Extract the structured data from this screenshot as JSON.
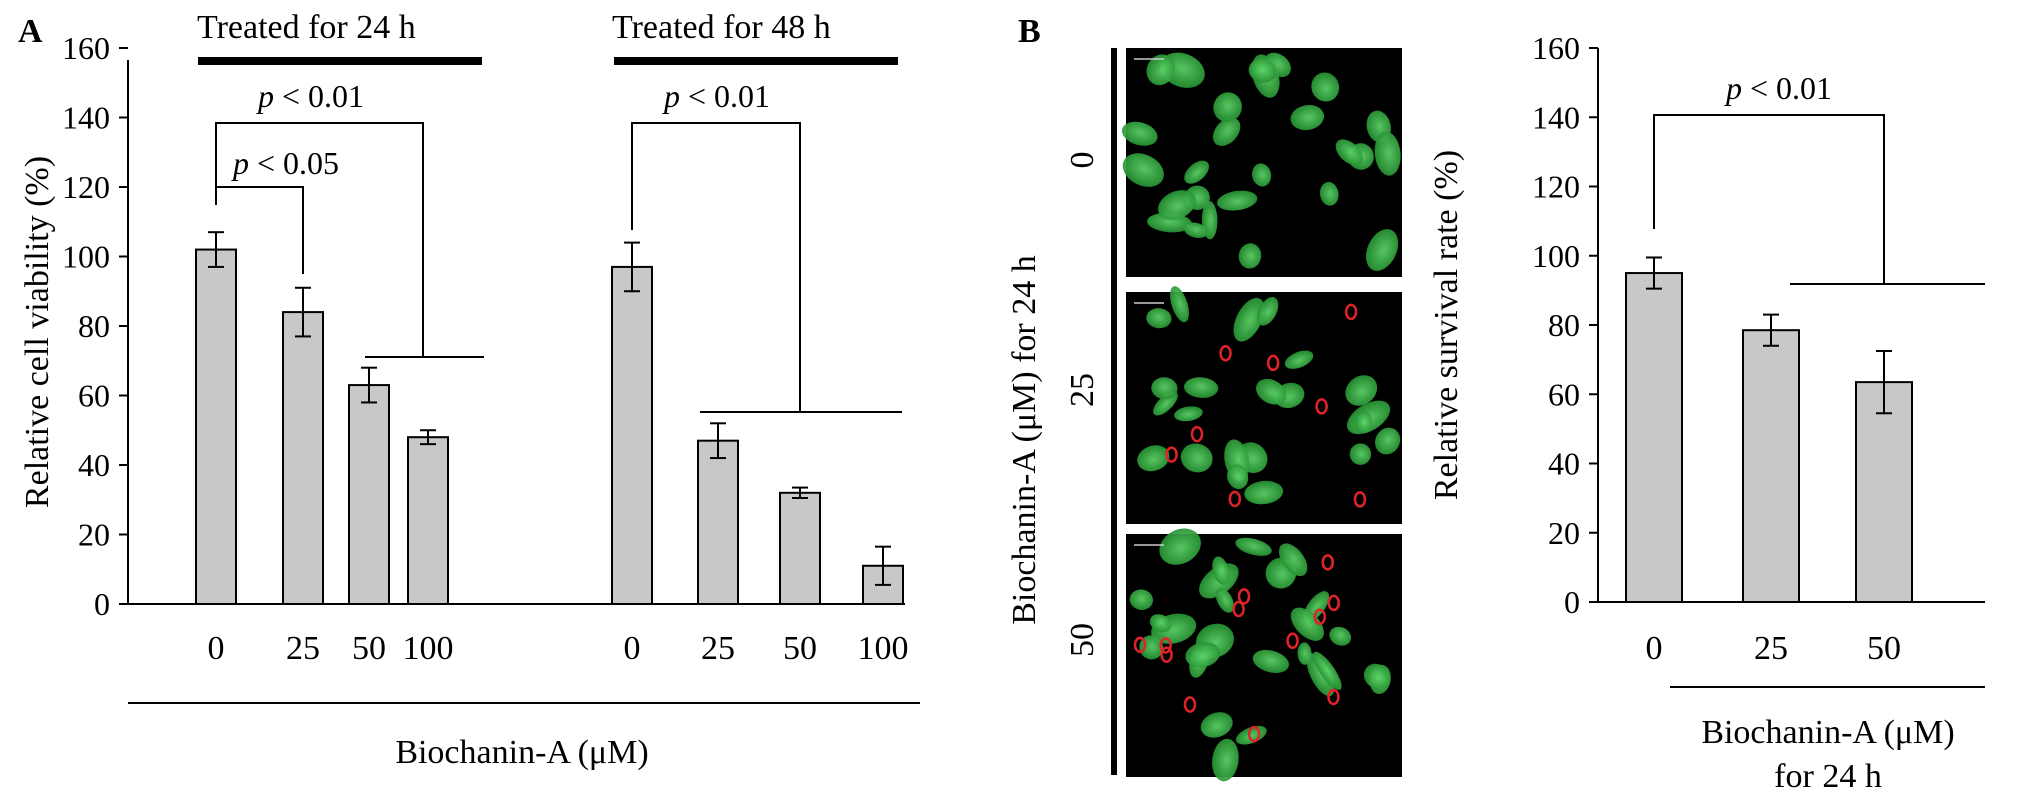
{
  "panel_a_label": "A",
  "panel_b_label": "B",
  "chart_data": [
    {
      "type": "bar",
      "panel": "A",
      "ylabel": "Relative cell viability (%)",
      "xlabel": "Biochanin-A (μM)",
      "ylim": [
        0,
        160
      ],
      "yticks": [
        0,
        20,
        40,
        60,
        80,
        100,
        120,
        140,
        160
      ],
      "groups": [
        {
          "name": "Treated for 24 h",
          "categories": [
            "0",
            "25",
            "50",
            "100"
          ],
          "values": [
            102,
            84,
            63,
            48
          ],
          "errors": [
            5,
            7,
            5,
            2
          ]
        },
        {
          "name": "Treated for 48 h",
          "categories": [
            "0",
            "25",
            "50",
            "100"
          ],
          "values": [
            97,
            47,
            32,
            11
          ],
          "errors": [
            7,
            5,
            1.5,
            5.5
          ]
        }
      ],
      "annotations": [
        "p < 0.01",
        "p < 0.05",
        "p < 0.01"
      ]
    },
    {
      "type": "bar",
      "panel": "B",
      "ylabel": "Relative survival rate (%)",
      "xlabel": "Biochanin-A (μM)",
      "xlabel2": "for 24 h",
      "ylim": [
        0,
        160
      ],
      "yticks": [
        0,
        20,
        40,
        60,
        80,
        100,
        120,
        140,
        160
      ],
      "categories": [
        "0",
        "25",
        "50"
      ],
      "values": [
        95,
        78.5,
        63.5
      ],
      "errors": [
        4.5,
        4.5,
        9
      ],
      "annotations": [
        "p < 0.01"
      ]
    }
  ],
  "micrographs": {
    "ylabel": "Biochanin-A (μM) for 24 h",
    "rows": [
      "0",
      "25",
      "50"
    ]
  }
}
